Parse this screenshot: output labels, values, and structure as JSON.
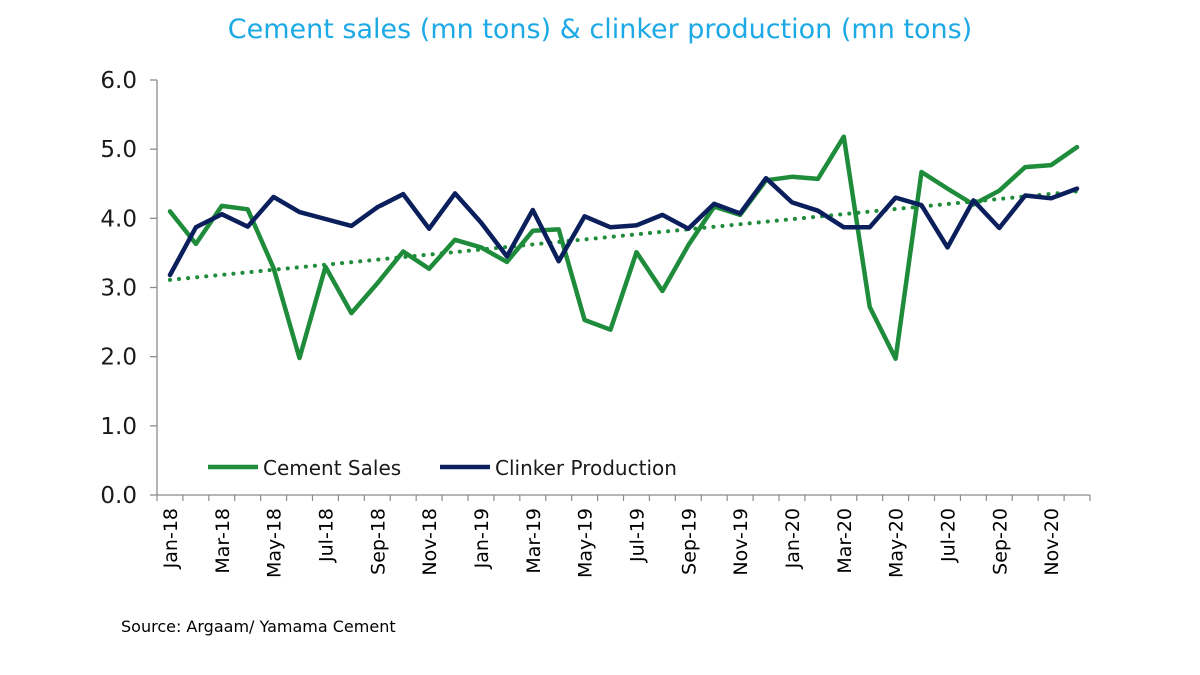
{
  "chart_data": {
    "type": "line",
    "title": "Cement sales (mn tons) & clinker production (mn tons)",
    "xlabel": "",
    "ylabel": "",
    "ylim": [
      0,
      6
    ],
    "yticks": [
      "0.0",
      "1.0",
      "2.0",
      "3.0",
      "4.0",
      "5.0",
      "6.0"
    ],
    "x": [
      "Jan-18",
      "Feb-18",
      "Mar-18",
      "Apr-18",
      "May-18",
      "Jun-18",
      "Jul-18",
      "Aug-18",
      "Sep-18",
      "Oct-18",
      "Nov-18",
      "Dec-18",
      "Jan-19",
      "Feb-19",
      "Mar-19",
      "Apr-19",
      "May-19",
      "Jun-19",
      "Jul-19",
      "Aug-19",
      "Sep-19",
      "Oct-19",
      "Nov-19",
      "Dec-19",
      "Jan-20",
      "Feb-20",
      "Mar-20",
      "Apr-20",
      "May-20",
      "Jun-20",
      "Jul-20",
      "Aug-20",
      "Sep-20",
      "Oct-20",
      "Nov-20",
      "Dec-20"
    ],
    "x_tick_labels": [
      "Jan-18",
      "Mar-18",
      "May-18",
      "Jul-18",
      "Sep-18",
      "Nov-18",
      "Jan-19",
      "Mar-19",
      "May-19",
      "Jul-19",
      "Sep-19",
      "Nov-19",
      "Jan-20",
      "Mar-20",
      "May-20",
      "Jul-20",
      "Sep-20",
      "Nov-20"
    ],
    "series": [
      {
        "name": "Cement Sales",
        "color": "#1e8c3a",
        "values": [
          4.1,
          3.63,
          4.18,
          4.13,
          3.28,
          1.98,
          3.3,
          2.63,
          3.06,
          3.52,
          3.27,
          3.69,
          3.58,
          3.37,
          3.82,
          3.84,
          2.53,
          2.39,
          3.51,
          2.95,
          3.61,
          4.17,
          4.05,
          4.55,
          4.6,
          4.57,
          5.18,
          2.72,
          1.97,
          4.67,
          4.43,
          4.2,
          4.4,
          4.74,
          4.77,
          5.03
        ]
      },
      {
        "name": "Clinker Production",
        "color": "#0a1f5c",
        "values": [
          3.18,
          3.87,
          4.06,
          3.88,
          4.31,
          4.09,
          3.99,
          3.89,
          4.16,
          4.35,
          3.85,
          4.36,
          3.94,
          3.45,
          4.12,
          3.38,
          4.03,
          3.87,
          3.9,
          4.05,
          3.85,
          4.21,
          4.07,
          4.58,
          4.23,
          4.11,
          3.87,
          3.87,
          4.3,
          4.19,
          3.58,
          4.26,
          3.86,
          4.33,
          4.29,
          4.43
        ]
      }
    ],
    "trendline": {
      "series": "Cement Sales",
      "style": "dotted",
      "color": "#1e8c3a",
      "start": 3.11,
      "end": 4.39
    },
    "legend_position": "bottom-left",
    "grid": false,
    "source": "Source: Argaam/ Yamama Cement"
  }
}
